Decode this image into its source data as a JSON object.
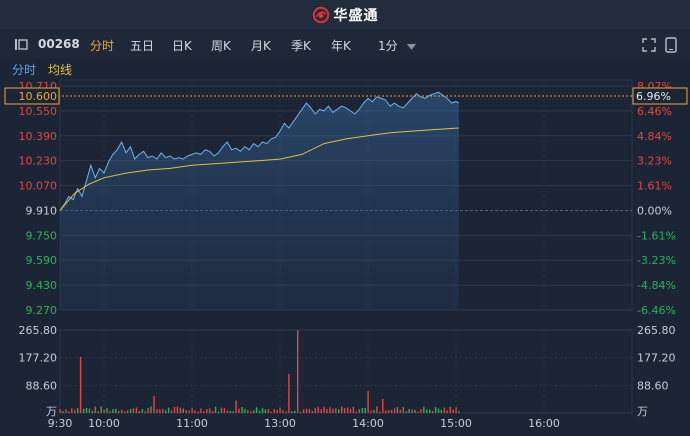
{
  "header": {
    "brand": "华盛通",
    "brand_color": "#e8322e"
  },
  "toolbar": {
    "stock_code": "00268",
    "tabs": [
      "分时",
      "五日",
      "日K",
      "周K",
      "月K",
      "季K",
      "年K"
    ],
    "active_tab": "分时",
    "interval": "1分",
    "collapse_icon": "collapse-panel-icon",
    "fullscreen_icon": "fullscreen-icon",
    "landscape_icon": "rotate-landscape-icon"
  },
  "subbar": {
    "mode": "分时",
    "ma_label": "均线"
  },
  "price_axis": {
    "left_labels": [
      "10.710",
      "10.550",
      "10.390",
      "10.230",
      "10.070",
      "9.910",
      "9.750",
      "9.590",
      "9.430",
      "9.270"
    ],
    "right_labels": [
      "8.07%",
      "6.46%",
      "4.84%",
      "3.23%",
      "1.61%",
      "0.00%",
      "-1.61%",
      "-3.23%",
      "-4.84%",
      "-6.46%"
    ],
    "cursor_price": "10.600",
    "cursor_pct": "6.96%"
  },
  "volume_axis": {
    "left_labels": [
      "265.80",
      "177.20",
      "88.60",
      "万"
    ],
    "right_labels": [
      "265.80",
      "177.20",
      "88.60",
      "万"
    ]
  },
  "time_axis": [
    "9:30",
    "10:00",
    "11:00",
    "13:00",
    "14:00",
    "15:00",
    "16:00"
  ],
  "colors": {
    "up": "#e8453c",
    "down": "#27b35a",
    "price_line": "#6fb3f0",
    "avg_line": "#e0c040",
    "cursor": "#f0a536",
    "neutral": "#c7cdd8"
  },
  "chart_data": {
    "type": "line",
    "prev_close": 9.91,
    "ylim": [
      9.27,
      10.71
    ],
    "x_unit": "minutes since 9:30 (trading session, lunch break removed)",
    "price": [
      [
        0,
        9.91
      ],
      [
        3,
        9.95
      ],
      [
        6,
        10.0
      ],
      [
        9,
        9.98
      ],
      [
        12,
        10.05
      ],
      [
        15,
        10.0
      ],
      [
        18,
        10.1
      ],
      [
        21,
        10.2
      ],
      [
        24,
        10.12
      ],
      [
        27,
        10.18
      ],
      [
        30,
        10.15
      ],
      [
        33,
        10.22
      ],
      [
        36,
        10.27
      ],
      [
        39,
        10.3
      ],
      [
        42,
        10.35
      ],
      [
        45,
        10.28
      ],
      [
        48,
        10.32
      ],
      [
        51,
        10.24
      ],
      [
        54,
        10.27
      ],
      [
        57,
        10.29
      ],
      [
        60,
        10.25
      ],
      [
        63,
        10.26
      ],
      [
        66,
        10.24
      ],
      [
        69,
        10.28
      ],
      [
        72,
        10.25
      ],
      [
        75,
        10.26
      ],
      [
        78,
        10.24
      ],
      [
        81,
        10.25
      ],
      [
        84,
        10.24
      ],
      [
        87,
        10.26
      ],
      [
        90,
        10.27
      ],
      [
        93,
        10.28
      ],
      [
        96,
        10.27
      ],
      [
        99,
        10.3
      ],
      [
        102,
        10.29
      ],
      [
        105,
        10.26
      ],
      [
        108,
        10.28
      ],
      [
        111,
        10.32
      ],
      [
        114,
        10.35
      ],
      [
        117,
        10.3
      ],
      [
        120,
        10.31
      ],
      [
        123,
        10.29
      ],
      [
        126,
        10.32
      ],
      [
        129,
        10.3
      ],
      [
        132,
        10.34
      ],
      [
        135,
        10.32
      ],
      [
        138,
        10.35
      ],
      [
        141,
        10.34
      ],
      [
        144,
        10.37
      ],
      [
        147,
        10.38
      ],
      [
        150,
        10.42
      ],
      [
        153,
        10.47
      ],
      [
        156,
        10.44
      ],
      [
        159,
        10.48
      ],
      [
        162,
        10.52
      ],
      [
        165,
        10.56
      ],
      [
        168,
        10.6
      ],
      [
        171,
        10.57
      ],
      [
        174,
        10.53
      ],
      [
        177,
        10.56
      ],
      [
        180,
        10.55
      ],
      [
        183,
        10.58
      ],
      [
        186,
        10.54
      ],
      [
        189,
        10.56
      ],
      [
        192,
        10.58
      ],
      [
        195,
        10.57
      ],
      [
        198,
        10.55
      ],
      [
        201,
        10.53
      ],
      [
        204,
        10.56
      ],
      [
        207,
        10.6
      ],
      [
        210,
        10.63
      ],
      [
        213,
        10.61
      ],
      [
        216,
        10.64
      ],
      [
        219,
        10.63
      ],
      [
        222,
        10.62
      ],
      [
        225,
        10.58
      ],
      [
        228,
        10.6
      ],
      [
        231,
        10.58
      ],
      [
        234,
        10.57
      ],
      [
        237,
        10.6
      ],
      [
        240,
        10.63
      ],
      [
        243,
        10.66
      ],
      [
        246,
        10.64
      ],
      [
        249,
        10.63
      ],
      [
        252,
        10.65
      ],
      [
        255,
        10.66
      ],
      [
        258,
        10.67
      ],
      [
        261,
        10.65
      ],
      [
        264,
        10.63
      ],
      [
        267,
        10.6
      ],
      [
        270,
        10.61
      ],
      [
        272,
        10.6
      ]
    ],
    "avg": [
      [
        0,
        9.91
      ],
      [
        10,
        10.02
      ],
      [
        20,
        10.08
      ],
      [
        30,
        10.12
      ],
      [
        45,
        10.15
      ],
      [
        60,
        10.17
      ],
      [
        75,
        10.18
      ],
      [
        90,
        10.2
      ],
      [
        105,
        10.21
      ],
      [
        120,
        10.22
      ],
      [
        135,
        10.23
      ],
      [
        150,
        10.24
      ],
      [
        165,
        10.27
      ],
      [
        180,
        10.34
      ],
      [
        195,
        10.37
      ],
      [
        210,
        10.39
      ],
      [
        225,
        10.41
      ],
      [
        240,
        10.42
      ],
      [
        255,
        10.43
      ],
      [
        272,
        10.44
      ]
    ],
    "volume_ylim": [
      0,
      265.8
    ],
    "volume_peaks": [
      [
        14,
        180
      ],
      [
        162,
        265
      ],
      [
        156,
        125
      ],
      [
        39,
        60
      ],
      [
        5,
        70
      ],
      [
        210,
        70
      ],
      [
        220,
        45
      ],
      [
        120,
        40
      ],
      [
        64,
        55
      ]
    ]
  }
}
